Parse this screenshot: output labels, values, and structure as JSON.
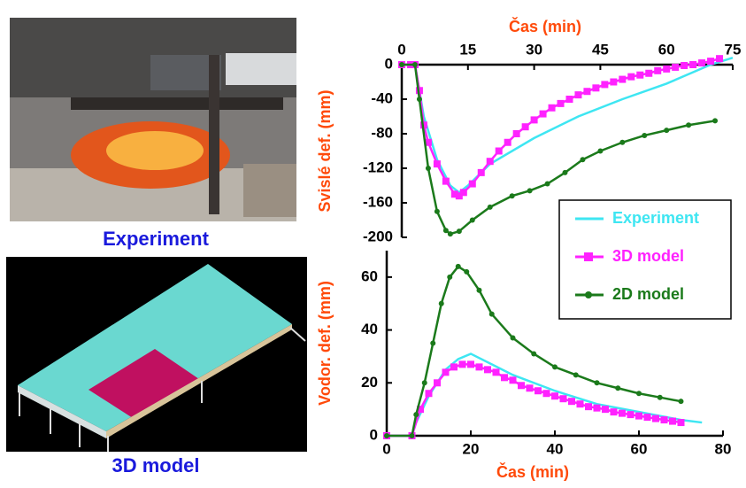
{
  "images": [
    {
      "caption": "Experiment"
    },
    {
      "caption": "3D model"
    }
  ],
  "chart_data": [
    {
      "type": "line",
      "xlabel": "Čas (min)",
      "ylabel": "Svislé def. (mm)",
      "xaxis": "top",
      "xlim": [
        0,
        75
      ],
      "xticks": [
        0,
        15,
        30,
        45,
        60,
        75
      ],
      "ylim": [
        -200,
        0
      ],
      "yticks": [
        0,
        -40,
        -80,
        -120,
        -160,
        -200
      ],
      "series": [
        {
          "name": "Experiment",
          "color": "#3ee6f2",
          "marker": "none",
          "x": [
            0,
            3,
            5,
            8,
            11,
            13,
            15,
            20,
            30,
            40,
            50,
            60,
            70,
            75
          ],
          "values": [
            0,
            0,
            -60,
            -110,
            -140,
            -148,
            -140,
            -115,
            -85,
            -60,
            -40,
            -22,
            0,
            8
          ]
        },
        {
          "name": "3D model",
          "color": "#ff22ff",
          "marker": "square",
          "x": [
            0,
            2,
            3,
            4,
            5,
            6,
            8,
            10,
            12,
            13,
            14,
            16,
            18,
            20,
            22,
            24,
            26,
            28,
            30,
            32,
            34,
            36,
            38,
            40,
            42,
            44,
            46,
            48,
            50,
            52,
            54,
            56,
            58,
            60,
            62,
            64,
            66,
            68,
            70,
            72
          ],
          "values": [
            0,
            0,
            0,
            -30,
            -70,
            -90,
            -115,
            -135,
            -150,
            -152,
            -148,
            -138,
            -125,
            -112,
            -100,
            -90,
            -80,
            -72,
            -64,
            -57,
            -50,
            -45,
            -40,
            -35,
            -31,
            -27,
            -23,
            -20,
            -17,
            -14,
            -12,
            -10,
            -7,
            -5,
            -3,
            -1,
            0,
            2,
            4,
            7
          ]
        },
        {
          "name": "2D model",
          "color": "#1b7a1b",
          "marker": "circle",
          "x": [
            0,
            3,
            4,
            6,
            8,
            10,
            11,
            13,
            16,
            20,
            25,
            29,
            33,
            37,
            41,
            45,
            50,
            55,
            60,
            65,
            71
          ],
          "values": [
            0,
            0,
            -40,
            -120,
            -170,
            -192,
            -196,
            -193,
            -180,
            -165,
            -152,
            -146,
            -138,
            -125,
            -110,
            -100,
            -90,
            -82,
            -76,
            -70,
            -65
          ]
        }
      ]
    },
    {
      "type": "line",
      "xlabel": "Čas (min)",
      "ylabel": "Vodor. def. (mm)",
      "xaxis": "bottom",
      "legend": "upper right",
      "xlim": [
        0,
        80
      ],
      "xticks": [
        0,
        20,
        40,
        60,
        80
      ],
      "ylim": [
        0,
        70
      ],
      "yticks": [
        0,
        20,
        40,
        60
      ],
      "series": [
        {
          "name": "Experiment",
          "color": "#3ee6f2",
          "marker": "none",
          "x": [
            0,
            6,
            7,
            10,
            14,
            17,
            20,
            25,
            30,
            40,
            50,
            60,
            70,
            75
          ],
          "values": [
            0,
            0,
            5,
            15,
            25,
            29,
            31,
            27,
            23,
            17,
            12,
            9,
            6,
            5
          ]
        },
        {
          "name": "3D model",
          "color": "#ff22ff",
          "marker": "square",
          "x": [
            0,
            6,
            8,
            10,
            12,
            14,
            16,
            18,
            20,
            22,
            24,
            26,
            28,
            30,
            32,
            34,
            36,
            38,
            40,
            42,
            44,
            46,
            48,
            50,
            52,
            54,
            56,
            58,
            60,
            62,
            64,
            66,
            68,
            70
          ],
          "values": [
            0,
            0,
            10,
            16,
            20,
            24,
            26,
            27,
            27,
            26,
            25,
            24,
            22,
            21,
            19,
            18,
            17,
            16,
            15,
            14,
            13,
            12,
            11,
            10.5,
            10,
            9,
            8.5,
            8,
            7.5,
            7,
            6.5,
            6,
            5.5,
            5
          ]
        },
        {
          "name": "2D model",
          "color": "#1b7a1b",
          "marker": "circle",
          "x": [
            0,
            6,
            7,
            9,
            11,
            13,
            15,
            17,
            19,
            22,
            25,
            30,
            35,
            40,
            45,
            50,
            55,
            60,
            65,
            70
          ],
          "values": [
            0,
            0,
            8,
            20,
            35,
            50,
            60,
            64,
            62,
            55,
            46,
            37,
            31,
            26,
            23,
            20,
            18,
            16,
            14.5,
            13
          ]
        }
      ]
    }
  ]
}
